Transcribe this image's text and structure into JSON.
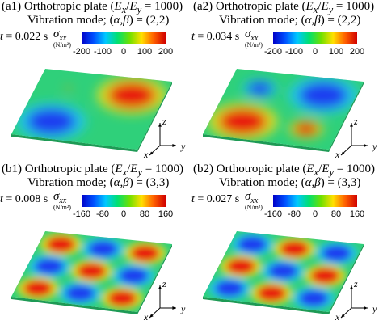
{
  "panels": [
    {
      "id": "a1",
      "title_prefix": "(a1) Orthotropic plate (",
      "ratio": "E",
      "ratio_sub_x": "x",
      "ratio_sep": "/",
      "ratio_y": "E",
      "ratio_sub_y": "y",
      "title_suffix": " = 1000)",
      "mode_text": "Vibration mode; (",
      "alpha_beta": "α,β",
      "mode_value": ") = (2,2)",
      "time_label": "t",
      "time_value": " = 0.022 s",
      "sigma_label": "σ",
      "sigma_sub": "xx",
      "unit": "(N/m²)",
      "ticks": [
        "-200",
        "-100",
        "0",
        "100",
        "200"
      ],
      "grid": [
        [
          0.1,
          1.0
        ],
        [
          -1.0,
          0.0
        ]
      ]
    },
    {
      "id": "a2",
      "title_prefix": "(a2) Orthotropic plate (",
      "ratio": "E",
      "ratio_sub_x": "x",
      "ratio_sep": "/",
      "ratio_y": "E",
      "ratio_sub_y": "y",
      "title_suffix": " = 1000)",
      "mode_text": "Vibration mode; (",
      "alpha_beta": "α,β",
      "mode_value": ") = (2,2)",
      "time_label": "t",
      "time_value": " = 0.034 s",
      "sigma_label": "σ",
      "sigma_sub": "xx",
      "unit": "(N/m²)",
      "ticks": [
        "-200",
        "-100",
        "0",
        "100",
        "200"
      ],
      "grid": [
        [
          -0.5,
          -1.0
        ],
        [
          1.0,
          0.5
        ]
      ]
    },
    {
      "id": "b1",
      "title_prefix": "(b1) Orthotropic plate (",
      "ratio": "E",
      "ratio_sub_x": "x",
      "ratio_sep": "/",
      "ratio_y": "E",
      "ratio_sub_y": "y",
      "title_suffix": " = 1000)",
      "mode_text": "Vibration mode; (",
      "alpha_beta": "α,β",
      "mode_value": ") = (3,3)",
      "time_label": "t",
      "time_value": " = 0.008 s",
      "sigma_label": "σ",
      "sigma_sub": "xx",
      "unit": "(N/m²)",
      "ticks": [
        "-160",
        "-80",
        "0",
        "80",
        "160"
      ],
      "grid": [
        [
          1,
          -1,
          1
        ],
        [
          -1,
          1,
          -1
        ],
        [
          1,
          -1,
          1
        ]
      ]
    },
    {
      "id": "b2",
      "title_prefix": "(b2) Orthotropic plate (",
      "ratio": "E",
      "ratio_sub_x": "x",
      "ratio_sep": "/",
      "ratio_y": "E",
      "ratio_sub_y": "y",
      "title_suffix": " = 1000)",
      "mode_text": "Vibration mode; (",
      "alpha_beta": "α,β",
      "mode_value": ") = (3,3)",
      "time_label": "t",
      "time_value": " = 0.027 s",
      "sigma_label": "σ",
      "sigma_sub": "xx",
      "unit": "(N/m²)",
      "ticks": [
        "-160",
        "-80",
        "0",
        "80",
        "160"
      ],
      "grid": [
        [
          -1,
          1,
          -1
        ],
        [
          1,
          -1,
          1
        ],
        [
          -1,
          1,
          -1
        ]
      ]
    }
  ],
  "axis_labels": {
    "x": "x",
    "y": "y",
    "z": "z"
  },
  "colors": {
    "plate_base": "#2fd07a",
    "high": "#e8160c",
    "low": "#1a3ef0"
  }
}
